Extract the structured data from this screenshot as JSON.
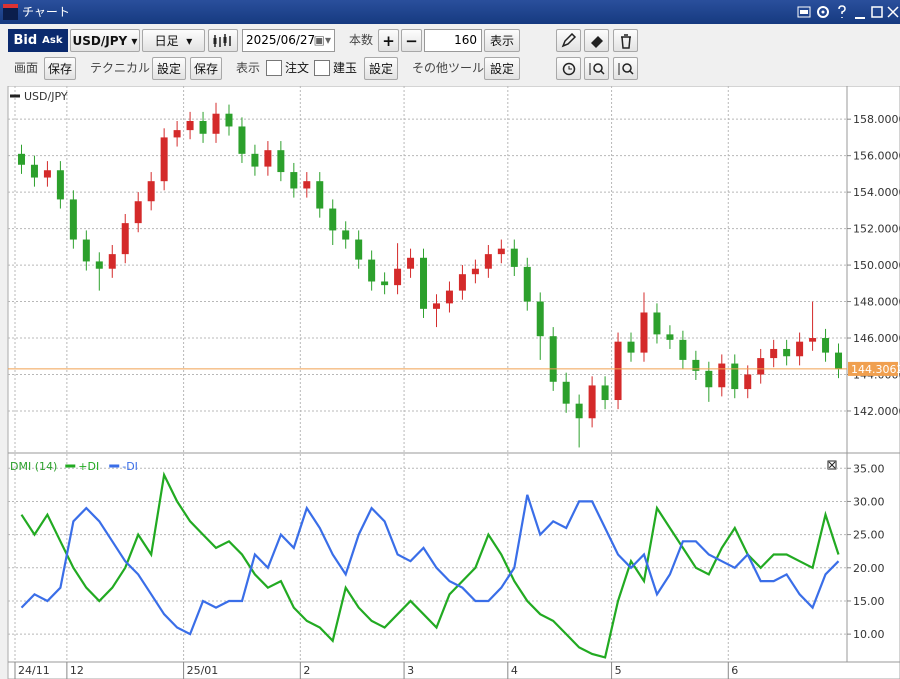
{
  "ui": {
    "window_title": "チャート",
    "toolbar": {
      "bid": "Bid",
      "ask": "Ask",
      "pair": "USD/JPY",
      "period": "日足",
      "date": "2025/06/27",
      "count_label": "本数",
      "plus": "+",
      "minus": "−",
      "count": 160,
      "show": "表示"
    },
    "toolbar2": {
      "screen": "画面",
      "screen_save": "保存",
      "technical": "テクニカル",
      "technical_setting": "設定",
      "technical_save": "保存",
      "display": "表示",
      "order": "注文",
      "position": "建玉",
      "display_setting": "設定",
      "other_tools": "その他ツール",
      "other_setting": "設定"
    }
  },
  "chart_data": [
    {
      "type": "candlestick",
      "up_color": "#d42a2a",
      "down_color": "#2ca02c",
      "categories": [
        "24/11",
        null,
        null,
        null,
        "12",
        null,
        null,
        null,
        null,
        null,
        null,
        null,
        null,
        "25/01",
        null,
        null,
        null,
        null,
        null,
        null,
        null,
        null,
        "2",
        null,
        null,
        null,
        null,
        null,
        null,
        null,
        "3",
        null,
        null,
        null,
        null,
        null,
        null,
        null,
        "4",
        null,
        null,
        null,
        null,
        null,
        null,
        null,
        "5",
        null,
        null,
        null,
        null,
        null,
        null,
        null,
        null,
        "6",
        null,
        null,
        null,
        null,
        null,
        null,
        null,
        null
      ],
      "series": [
        {
          "name": "USD/JPY",
          "open": [
            156.1,
            155.5,
            154.8,
            155.2,
            153.6,
            151.4,
            150.2,
            149.8,
            150.6,
            152.3,
            153.5,
            154.6,
            157.0,
            157.4,
            157.9,
            157.2,
            158.3,
            157.6,
            156.1,
            155.4,
            156.3,
            155.1,
            154.2,
            154.6,
            153.1,
            151.9,
            151.4,
            150.3,
            149.1,
            148.9,
            149.8,
            150.4,
            147.6,
            147.9,
            148.6,
            149.5,
            149.8,
            150.6,
            150.9,
            149.9,
            148.0,
            146.1,
            143.6,
            142.4,
            141.6,
            143.4,
            142.6,
            145.8,
            145.2,
            147.4,
            146.2,
            145.9,
            144.8,
            144.2,
            143.3,
            144.6,
            143.2,
            144.0,
            144.9,
            145.4,
            145.0,
            145.8,
            146.0,
            145.2
          ],
          "high": [
            156.6,
            156.0,
            155.7,
            155.7,
            154.1,
            151.9,
            150.7,
            151.1,
            152.8,
            154.0,
            155.1,
            157.5,
            157.9,
            158.4,
            158.4,
            158.9,
            158.8,
            158.1,
            156.6,
            156.8,
            156.8,
            155.6,
            155.1,
            155.1,
            153.6,
            152.4,
            151.9,
            150.8,
            149.6,
            151.2,
            150.9,
            150.9,
            148.4,
            149.1,
            150.0,
            150.3,
            151.1,
            151.4,
            151.4,
            150.4,
            148.5,
            146.6,
            144.1,
            142.9,
            143.9,
            143.9,
            146.3,
            146.3,
            148.5,
            147.9,
            146.7,
            146.4,
            145.3,
            144.7,
            145.1,
            145.1,
            144.5,
            145.4,
            145.9,
            145.9,
            146.3,
            148.0,
            146.5,
            145.7
          ],
          "low": [
            155.0,
            154.3,
            154.3,
            153.1,
            150.9,
            149.7,
            148.6,
            149.3,
            150.1,
            151.8,
            153.0,
            154.1,
            156.5,
            156.9,
            156.7,
            156.7,
            157.1,
            155.6,
            154.9,
            154.9,
            154.6,
            153.7,
            153.7,
            152.6,
            151.1,
            150.9,
            149.8,
            148.6,
            148.4,
            148.4,
            149.3,
            147.1,
            146.6,
            147.4,
            148.1,
            149.0,
            149.3,
            150.1,
            149.4,
            147.5,
            144.8,
            143.1,
            141.9,
            140.0,
            141.1,
            142.1,
            142.1,
            144.7,
            144.7,
            145.7,
            145.4,
            144.3,
            143.7,
            142.5,
            142.8,
            142.7,
            142.7,
            143.5,
            144.4,
            144.5,
            144.5,
            145.3,
            144.7,
            143.8
          ],
          "close": [
            155.5,
            154.8,
            155.2,
            153.6,
            151.4,
            150.2,
            149.8,
            150.6,
            152.3,
            153.5,
            154.6,
            157.0,
            157.4,
            157.9,
            157.2,
            158.3,
            157.6,
            156.1,
            155.4,
            156.3,
            155.1,
            154.2,
            154.6,
            153.1,
            151.9,
            151.4,
            150.3,
            149.1,
            148.9,
            149.8,
            150.4,
            147.6,
            147.9,
            148.6,
            149.5,
            149.8,
            150.6,
            150.9,
            149.9,
            148.0,
            146.1,
            143.6,
            142.4,
            141.6,
            143.4,
            142.6,
            145.8,
            145.2,
            147.4,
            146.2,
            145.9,
            144.8,
            144.2,
            143.3,
            144.6,
            143.2,
            144.0,
            144.9,
            145.4,
            145.0,
            145.8,
            146.0,
            145.2,
            144.3
          ]
        }
      ],
      "last_price": 144.3062,
      "last_price_color": "#f0a050",
      "ylim": [
        139.75,
        159.6
      ],
      "yticks": [
        {
          "value": 142,
          "label": "142.0000"
        },
        {
          "value": 144,
          "label": "144.0000"
        },
        {
          "value": 146,
          "label": "146.0000"
        },
        {
          "value": 148,
          "label": "148.0000"
        },
        {
          "value": 150,
          "label": "150.0000"
        },
        {
          "value": 152,
          "label": "152.0000"
        },
        {
          "value": 154,
          "label": "154.0000"
        },
        {
          "value": 156,
          "label": "156.0000"
        },
        {
          "value": 158,
          "label": "158.0000"
        }
      ],
      "grid": true
    },
    {
      "type": "line",
      "title": "DMI (14)",
      "title_color": "#2ca02c",
      "series": [
        {
          "name": "+DI",
          "color": "#22aa22",
          "values": [
            28,
            25,
            28,
            24,
            20,
            17,
            15,
            17,
            20,
            25,
            22,
            34,
            30,
            27,
            25,
            23,
            24,
            22,
            19,
            17,
            18,
            14,
            12,
            11,
            9,
            17,
            14,
            12,
            11,
            13,
            15,
            13,
            11,
            16,
            18,
            20,
            25,
            22,
            18,
            15,
            13,
            12,
            10,
            8,
            7,
            6.5,
            15,
            21,
            18,
            29,
            26,
            23,
            20,
            19,
            23,
            26,
            22,
            20,
            22,
            22,
            21,
            20,
            28,
            22
          ]
        },
        {
          "name": "-DI",
          "color": "#3a6ee8",
          "values": [
            14,
            16,
            15,
            17,
            27,
            29,
            27,
            24,
            21,
            19,
            16,
            13,
            11,
            10,
            15,
            14,
            15,
            15,
            22,
            20,
            25,
            23,
            29,
            26,
            22,
            19,
            25,
            29,
            27,
            22,
            21,
            23,
            20,
            18,
            17,
            15,
            15,
            17,
            20,
            31,
            25,
            27,
            26,
            30,
            30,
            26,
            22,
            20,
            22,
            16,
            19,
            24,
            24,
            22,
            21,
            20,
            22,
            18,
            18,
            19,
            16,
            14,
            19,
            21
          ]
        }
      ],
      "ylim": [
        5.8,
        37
      ],
      "yticks": [
        {
          "value": 10,
          "label": "10.00"
        },
        {
          "value": 15,
          "label": "15.00"
        },
        {
          "value": 20,
          "label": "20.00"
        },
        {
          "value": 25,
          "label": "25.00"
        },
        {
          "value": 30,
          "label": "30.00"
        },
        {
          "value": 35,
          "label": "35.00"
        }
      ],
      "grid": true
    }
  ]
}
